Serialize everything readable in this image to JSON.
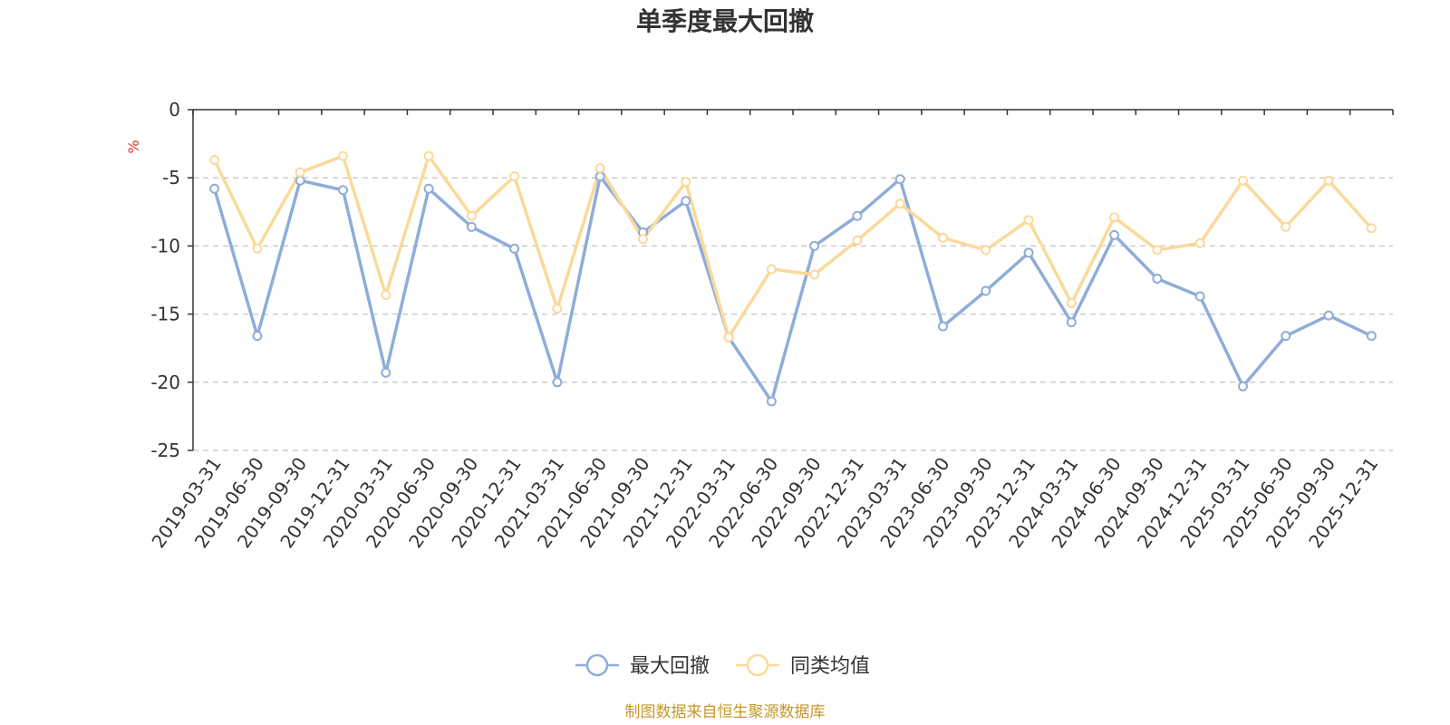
{
  "chart_data": {
    "type": "line",
    "title": "单季度最大回撤",
    "ylabel": "%",
    "ylim": [
      -25,
      0
    ],
    "yticks": [
      0,
      -5,
      -10,
      -15,
      -20,
      -25
    ],
    "grid": "horizontal-dashed",
    "legend_position": "bottom-center",
    "categories": [
      "2019-03-31",
      "2019-06-30",
      "2019-09-30",
      "2019-12-31",
      "2020-03-31",
      "2020-06-30",
      "2020-09-30",
      "2020-12-31",
      "2021-03-31",
      "2021-06-30",
      "2021-09-30",
      "2021-12-31",
      "2022-03-31",
      "2022-06-30",
      "2022-09-30",
      "2022-12-31",
      "2023-03-31",
      "2023-06-30",
      "2023-09-30",
      "2023-12-31",
      "2024-03-31",
      "2024-06-30",
      "2024-09-30",
      "2024-12-31",
      "2025-03-31",
      "2025-06-30",
      "2025-09-30",
      "2025-12-31"
    ],
    "series": [
      {
        "name": "最大回撤",
        "color": "#8eadd8",
        "values": [
          -5.8,
          -16.6,
          -5.2,
          -5.9,
          -19.3,
          -5.8,
          -8.6,
          -10.2,
          -20.0,
          -4.9,
          -9.0,
          -6.7,
          -16.7,
          -21.4,
          -10.0,
          -7.8,
          -5.1,
          -15.9,
          -13.3,
          -10.5,
          -15.6,
          -9.2,
          -12.4,
          -13.7,
          -20.3,
          -16.6,
          -15.1,
          -16.6
        ]
      },
      {
        "name": "同类均值",
        "color": "#fbd99a",
        "values": [
          -3.7,
          -10.2,
          -4.6,
          -3.4,
          -13.6,
          -3.4,
          -7.8,
          -4.9,
          -14.6,
          -4.3,
          -9.5,
          -5.3,
          -16.7,
          -11.7,
          -12.1,
          -9.6,
          -6.9,
          -9.4,
          -10.3,
          -8.1,
          -14.2,
          -7.9,
          -10.3,
          -9.8,
          -5.2,
          -8.6,
          -5.2,
          -8.7
        ]
      }
    ],
    "source": "制图数据来自恒生聚源数据库"
  }
}
